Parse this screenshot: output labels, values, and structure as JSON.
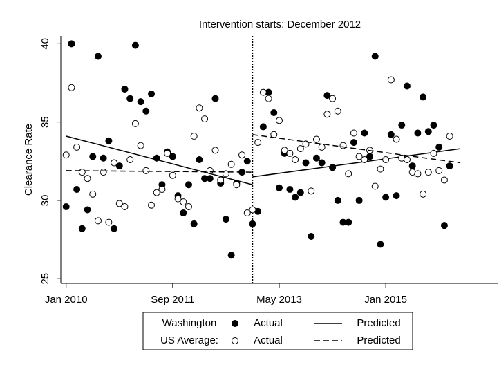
{
  "chart_data": {
    "type": "scatter",
    "title": "Intervention starts: December 2012",
    "y_label": "Clearance Rate",
    "intervention_x": "2012-12",
    "xlim": [
      "2009-12",
      "2016-10"
    ],
    "xticks": [
      {
        "value": "2010-01",
        "label": "Jan 2010"
      },
      {
        "value": "2011-09",
        "label": "Sep 2011"
      },
      {
        "value": "2013-05",
        "label": "May 2013"
      },
      {
        "value": "2015-01",
        "label": "Jan 2015"
      }
    ],
    "ylim": [
      24.7,
      40.5
    ],
    "yticks": [
      25,
      30,
      35,
      40
    ],
    "x": [
      "2010-01",
      "2010-02",
      "2010-03",
      "2010-04",
      "2010-05",
      "2010-06",
      "2010-07",
      "2010-08",
      "2010-09",
      "2010-10",
      "2010-11",
      "2010-12",
      "2011-01",
      "2011-02",
      "2011-03",
      "2011-04",
      "2011-05",
      "2011-06",
      "2011-07",
      "2011-08",
      "2011-09",
      "2011-10",
      "2011-11",
      "2011-12",
      "2012-01",
      "2012-02",
      "2012-03",
      "2012-04",
      "2012-05",
      "2012-06",
      "2012-07",
      "2012-08",
      "2012-09",
      "2012-10",
      "2012-11",
      "2012-12",
      "2013-01",
      "2013-02",
      "2013-03",
      "2013-04",
      "2013-05",
      "2013-06",
      "2013-07",
      "2013-08",
      "2013-09",
      "2013-10",
      "2013-11",
      "2013-12",
      "2014-01",
      "2014-02",
      "2014-03",
      "2014-04",
      "2014-05",
      "2014-06",
      "2014-07",
      "2014-08",
      "2014-09",
      "2014-10",
      "2014-11",
      "2014-12",
      "2015-01",
      "2015-02",
      "2015-03",
      "2015-04",
      "2015-05",
      "2015-06",
      "2015-07",
      "2015-08",
      "2015-09",
      "2015-10",
      "2015-11",
      "2015-12",
      "2016-01"
    ],
    "series": [
      {
        "group": "Washington",
        "name": "Actual",
        "marker": "filled",
        "color": "#000000",
        "values": [
          29.6,
          40,
          30.7,
          28.2,
          29.4,
          32.8,
          39.2,
          32.7,
          33.8,
          28.2,
          32.2,
          37.1,
          36.5,
          39.9,
          36.3,
          35.7,
          36.8,
          32.7,
          31.0,
          33.1,
          32.8,
          30.3,
          29.2,
          31.0,
          28.5,
          32.6,
          31.4,
          31.4,
          36.5,
          31.1,
          28.8,
          26.5,
          31.1,
          31.8,
          32.5,
          28.5,
          29.3,
          34.7,
          36.9,
          35.6,
          30.8,
          33.0,
          30.7,
          30.2,
          30.5,
          32.4,
          27.7,
          32.7,
          32.4,
          36.7,
          32.1,
          30.0,
          28.6,
          28.6,
          33.7,
          30.0,
          34.3,
          32.8,
          39.2,
          27.2,
          30.2,
          34.2,
          30.3,
          34.8,
          37.3,
          32.2,
          34.3,
          36.6,
          34.4,
          34.8,
          33.4,
          28.4,
          32.2
        ]
      },
      {
        "group": "Washington",
        "name": "Predicted",
        "line": "solid",
        "color": "#000000",
        "x": [
          "2010-01",
          "2012-12",
          null,
          "2012-12",
          "2016-03"
        ],
        "values": [
          34.1,
          31.0,
          null,
          31.5,
          33.3
        ]
      },
      {
        "group": "US Average:",
        "name": "Actual",
        "marker": "hollow",
        "color": "#000000",
        "values": [
          32.9,
          37.2,
          33.4,
          31.8,
          31.4,
          30.4,
          28.7,
          31.8,
          28.6,
          32.4,
          29.8,
          29.6,
          32.6,
          34.9,
          33.5,
          31.9,
          29.7,
          30.5,
          30.7,
          33.0,
          31.6,
          30.1,
          29.9,
          29.6,
          34.1,
          35.9,
          35.2,
          31.9,
          33.2,
          31.3,
          31.7,
          32.3,
          31.0,
          32.9,
          29.2,
          29.4,
          33.7,
          36.9,
          36.5,
          34.2,
          35.1,
          33.2,
          33.0,
          32.6,
          33.3,
          33.6,
          30.6,
          33.9,
          33.4,
          35.5,
          36.5,
          35.7,
          33.5,
          31.7,
          34.3,
          32.8,
          32.6,
          33.2,
          30.9,
          32.0,
          32.6,
          37.7,
          33.9,
          32.7,
          32.6,
          31.8,
          31.7,
          30.4,
          31.8,
          33.0,
          31.9,
          31.3,
          34.1
        ]
      },
      {
        "group": "US Average:",
        "name": "Predicted",
        "line": "dashed",
        "color": "#000000",
        "x": [
          "2010-01",
          "2012-12",
          null,
          "2012-12",
          "2016-03"
        ],
        "values": [
          31.9,
          31.8,
          null,
          34.2,
          32.4
        ]
      }
    ]
  }
}
